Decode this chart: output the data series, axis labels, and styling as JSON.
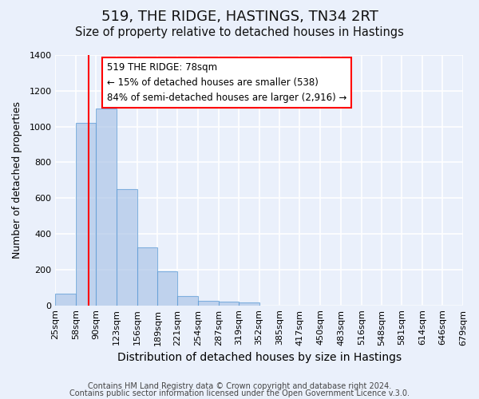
{
  "title": "519, THE RIDGE, HASTINGS, TN34 2RT",
  "subtitle": "Size of property relative to detached houses in Hastings",
  "xlabel": "Distribution of detached houses by size in Hastings",
  "ylabel": "Number of detached properties",
  "bar_values": [
    65,
    1020,
    1100,
    650,
    325,
    190,
    50,
    25,
    20,
    15,
    0,
    0,
    0,
    0,
    0,
    0,
    0,
    0,
    0,
    0
  ],
  "bin_labels": [
    "25sqm",
    "58sqm",
    "90sqm",
    "123sqm",
    "156sqm",
    "189sqm",
    "221sqm",
    "254sqm",
    "287sqm",
    "319sqm",
    "352sqm",
    "385sqm",
    "417sqm",
    "450sqm",
    "483sqm",
    "516sqm",
    "548sqm",
    "581sqm",
    "614sqm",
    "646sqm",
    "679sqm"
  ],
  "bar_color": "#aec6e8",
  "bar_edge_color": "#5b9bd5",
  "bar_alpha": 0.7,
  "vline_x": 78,
  "vline_color": "red",
  "annotation_text": "519 THE RIDGE: 78sqm\n← 15% of detached houses are smaller (538)\n84% of semi-detached houses are larger (2,916) →",
  "annotation_box_color": "white",
  "annotation_box_edge_color": "red",
  "ylim": [
    0,
    1400
  ],
  "yticks": [
    0,
    200,
    400,
    600,
    800,
    1000,
    1200,
    1400
  ],
  "bin_edges": [
    25,
    58,
    90,
    123,
    156,
    189,
    221,
    254,
    287,
    319,
    352,
    385,
    417,
    450,
    483,
    516,
    548,
    581,
    614,
    646,
    679
  ],
  "footer_line1": "Contains HM Land Registry data © Crown copyright and database right 2024.",
  "footer_line2": "Contains public sector information licensed under the Open Government Licence v.3.0.",
  "background_color": "#eaf0fb",
  "plot_bg_color": "#eaf0fb",
  "grid_color": "white",
  "title_fontsize": 13,
  "subtitle_fontsize": 10.5,
  "xlabel_fontsize": 10,
  "ylabel_fontsize": 9,
  "tick_fontsize": 8,
  "footer_fontsize": 7
}
